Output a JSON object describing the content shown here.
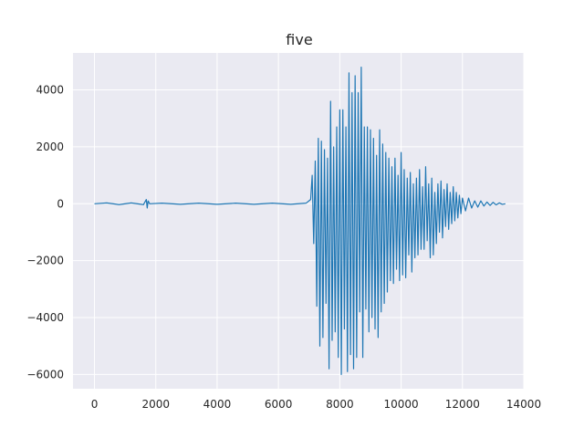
{
  "chart_data": {
    "type": "line",
    "title": "five",
    "xlabel": "",
    "ylabel": "",
    "xlim": [
      -700,
      14000
    ],
    "ylim": [
      -6500,
      5300
    ],
    "xticks": [
      0,
      2000,
      4000,
      6000,
      8000,
      10000,
      12000,
      14000
    ],
    "xtick_labels": [
      "0",
      "2000",
      "4000",
      "6000",
      "8000",
      "10000",
      "12000",
      "14000"
    ],
    "yticks": [
      -6000,
      -4000,
      -2000,
      0,
      2000,
      4000
    ],
    "ytick_labels": [
      "−6000",
      "−4000",
      "−2000",
      "0",
      "2000",
      "4000"
    ],
    "grid": true,
    "legend": "none",
    "colors": {
      "line": "#1f77b4",
      "plot_background": "#eaeaf2",
      "grid": "#ffffff"
    },
    "series": [
      {
        "x": [
          0,
          400,
          800,
          1200,
          1600,
          1690,
          1720,
          1750,
          1800,
          2200,
          2800,
          3400,
          4000,
          4600,
          5200,
          5800,
          6400,
          6900,
          7050,
          7100,
          7150,
          7200,
          7250,
          7300,
          7350,
          7400,
          7450,
          7500,
          7550,
          7600,
          7650,
          7700,
          7750,
          7800,
          7850,
          7900,
          7950,
          8000,
          8050,
          8100,
          8150,
          8200,
          8250,
          8300,
          8350,
          8400,
          8450,
          8500,
          8550,
          8600,
          8650,
          8700,
          8750,
          8800,
          8850,
          8900,
          8950,
          9000,
          9050,
          9100,
          9150,
          9200,
          9250,
          9300,
          9350,
          9400,
          9450,
          9500,
          9550,
          9600,
          9650,
          9700,
          9750,
          9800,
          9850,
          9900,
          9950,
          10000,
          10050,
          10100,
          10150,
          10200,
          10250,
          10300,
          10350,
          10400,
          10450,
          10500,
          10550,
          10600,
          10650,
          10700,
          10750,
          10800,
          10850,
          10900,
          10950,
          11000,
          11050,
          11100,
          11150,
          11200,
          11250,
          11300,
          11350,
          11400,
          11450,
          11500,
          11550,
          11600,
          11650,
          11700,
          11750,
          11800,
          11850,
          11900,
          11950,
          12000,
          12100,
          12200,
          12300,
          12400,
          12500,
          12600,
          12700,
          12800,
          12900,
          13000,
          13100,
          13200,
          13300,
          13400
        ],
        "y": [
          0,
          30,
          -30,
          30,
          -30,
          150,
          -150,
          100,
          0,
          20,
          -20,
          20,
          -20,
          20,
          -20,
          20,
          -20,
          20,
          150,
          1000,
          -1400,
          1500,
          -3600,
          2300,
          -5000,
          2200,
          -4700,
          1900,
          -3500,
          1600,
          -5800,
          3600,
          -4800,
          2000,
          -4500,
          2700,
          -5400,
          3300,
          -6000,
          3300,
          -4400,
          2700,
          -5900,
          4600,
          -5300,
          3900,
          -5800,
          4500,
          -5400,
          3900,
          -3800,
          4800,
          -5400,
          2700,
          -3700,
          2700,
          -4500,
          2600,
          -4000,
          2300,
          -4400,
          1700,
          -4700,
          2600,
          -3800,
          2100,
          -3500,
          1800,
          -3100,
          1600,
          -2700,
          1300,
          -2800,
          1600,
          -2300,
          1000,
          -2700,
          1800,
          -2500,
          1200,
          -2600,
          900,
          -1800,
          1100,
          -2400,
          700,
          -1900,
          900,
          -1800,
          1200,
          -1600,
          600,
          -1600,
          1300,
          -1300,
          700,
          -1900,
          900,
          -1800,
          400,
          -1400,
          700,
          -1000,
          800,
          -1200,
          500,
          -800,
          700,
          -900,
          400,
          -700,
          600,
          -600,
          400,
          -500,
          300,
          -350,
          200,
          -250,
          200,
          -150,
          100,
          -120,
          100,
          -80,
          60,
          -60,
          50,
          -40,
          30,
          -20,
          0
        ]
      }
    ]
  }
}
